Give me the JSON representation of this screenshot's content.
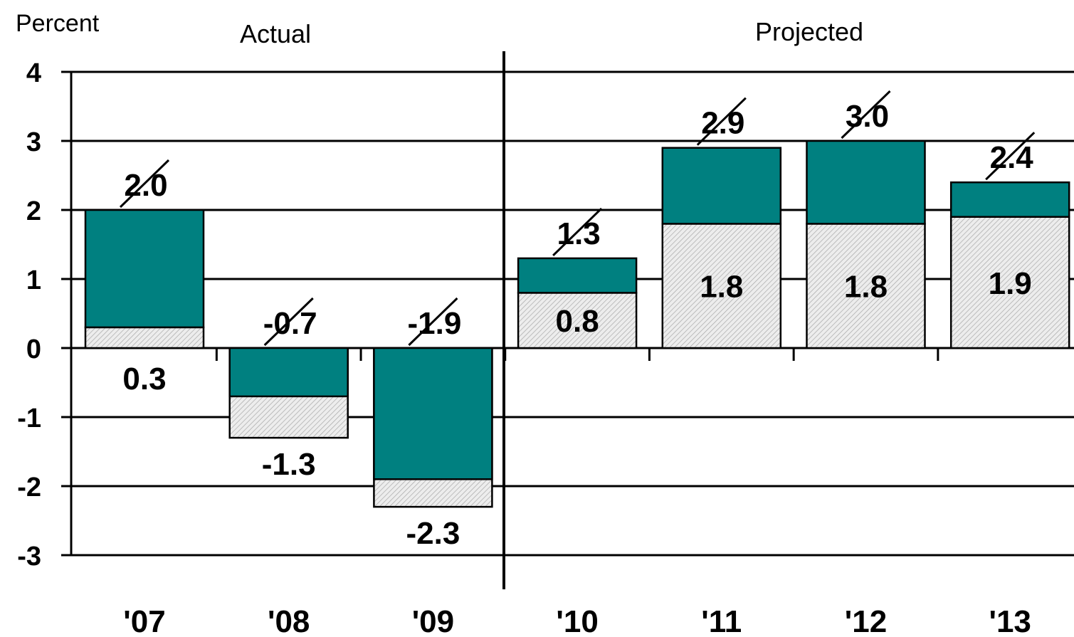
{
  "chart_data": {
    "type": "bar",
    "title": "",
    "ylabel": "Percent",
    "xlabel": "",
    "ylim": [
      -3,
      4
    ],
    "yticks": [
      "4",
      "3",
      "2",
      "1",
      "0",
      "-1",
      "-2",
      "-3"
    ],
    "ytick_values": [
      4,
      3,
      2,
      1,
      0,
      -1,
      -2,
      -3
    ],
    "grid": true,
    "stacked": true,
    "sections": [
      {
        "label": "Actual",
        "categories": [
          "'07",
          "'08",
          "'09"
        ]
      },
      {
        "label": "Projected",
        "categories": [
          "'10",
          "'11",
          "'12",
          "'13"
        ]
      }
    ],
    "categories": [
      "'07",
      "'08",
      "'09",
      "'10",
      "'11",
      "'12",
      "'13"
    ],
    "series": [
      {
        "values": [
          0.3,
          -1.3,
          -2.3,
          0.8,
          1.8,
          1.8,
          1.9
        ],
        "labels": [
          "0.3",
          "-1.3",
          "-2.3",
          "0.8",
          "1.8",
          "1.8",
          "1.9"
        ],
        "color": "#e6e6e6",
        "pattern": "hatched"
      },
      {
        "values": [
          1.7,
          0.6,
          0.4,
          0.5,
          1.1,
          1.2,
          0.5
        ],
        "color": "#008080"
      }
    ],
    "totals": [
      2.0,
      -0.7,
      -1.9,
      1.3,
      2.9,
      3.0,
      2.4
    ],
    "total_labels": [
      "2.0",
      "-0.7",
      "-1.9",
      "1.3",
      "2.9",
      "3.0",
      "2.4"
    ],
    "colors": {
      "teal": "#008080",
      "hatch_bg": "#ededed",
      "hatch_line": "#9a9a9a",
      "gridline": "#000000"
    }
  }
}
